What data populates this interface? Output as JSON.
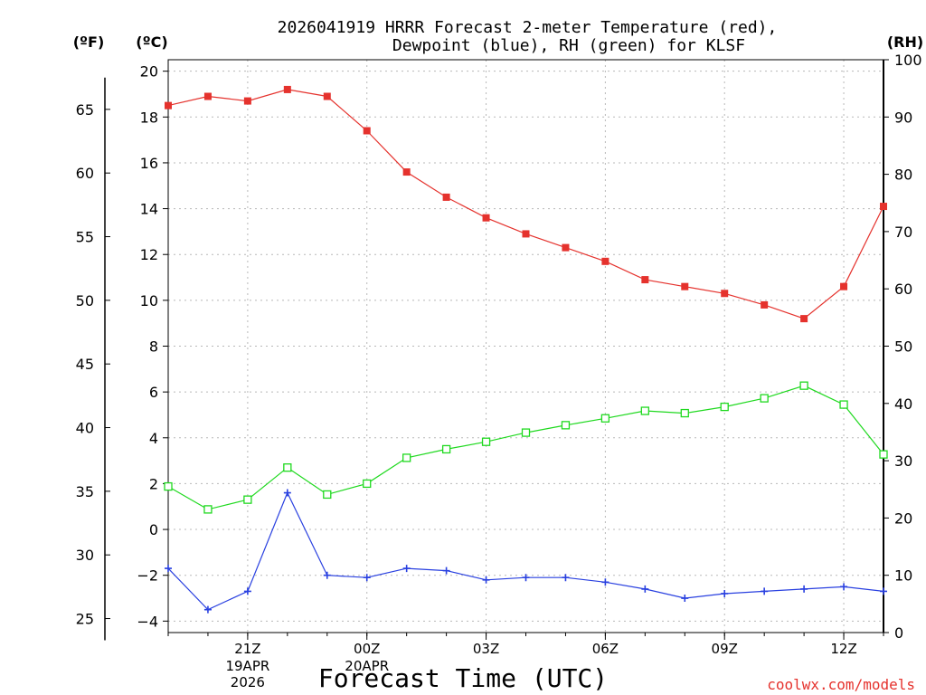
{
  "chart_data": {
    "type": "line",
    "title_line1": "2026041919 HRRR Forecast 2-meter Temperature (red),",
    "title_line2": "Dewpoint (blue), RH (green) for KLSF",
    "xlabel": "Forecast Time (UTC)",
    "credit": "coolwx.com/models",
    "units": {
      "left_f": "(ºF)",
      "left_c": "(ºC)",
      "right_rh": "(RH)"
    },
    "colors": {
      "temperature": "#e5322d",
      "dewpoint": "#2940e0",
      "rh": "#1fd91f"
    },
    "x_hours": [
      0,
      1,
      2,
      3,
      4,
      5,
      6,
      7,
      8,
      9,
      10,
      11,
      12,
      13,
      14,
      15,
      16,
      17,
      18
    ],
    "x_ticks": [
      {
        "hour": 2,
        "label": "21Z",
        "sub1": "19APR",
        "sub2": "2026"
      },
      {
        "hour": 5,
        "label": "00Z",
        "sub1": "20APR",
        "sub2": ""
      },
      {
        "hour": 8,
        "label": "03Z",
        "sub1": "",
        "sub2": ""
      },
      {
        "hour": 11,
        "label": "06Z",
        "sub1": "",
        "sub2": ""
      },
      {
        "hour": 14,
        "label": "09Z",
        "sub1": "",
        "sub2": ""
      },
      {
        "hour": 17,
        "label": "12Z",
        "sub1": "",
        "sub2": ""
      }
    ],
    "y_celsius_ticks": [
      20,
      18,
      16,
      14,
      12,
      10,
      8,
      6,
      4,
      2,
      0,
      -2,
      -4
    ],
    "y_fahrenheit_ticks": [
      65,
      60,
      55,
      50,
      45,
      40,
      35,
      30,
      25
    ],
    "y_rh_ticks": [
      100,
      90,
      80,
      70,
      60,
      50,
      40,
      30,
      20,
      10,
      0
    ],
    "ylim_celsius": [
      -4.5,
      20.5
    ],
    "ylim_rh": [
      0,
      100
    ],
    "series": [
      {
        "name": "Temperature",
        "unit": "C",
        "values": [
          18.5,
          18.9,
          18.7,
          19.2,
          18.9,
          17.4,
          15.6,
          14.5,
          13.6,
          12.9,
          12.3,
          11.7,
          10.9,
          10.6,
          10.3,
          9.8,
          9.2,
          10.6,
          14.1
        ]
      },
      {
        "name": "Dewpoint",
        "unit": "C",
        "values": [
          -1.7,
          -3.5,
          -2.7,
          1.6,
          -2.0,
          -2.1,
          -1.7,
          -1.8,
          -2.2,
          -2.1,
          -2.1,
          -2.3,
          -2.6,
          -3.0,
          -2.8,
          -2.7,
          -2.6,
          -2.5,
          -2.7
        ]
      },
      {
        "name": "RH",
        "unit": "%",
        "values": [
          25.5,
          21.5,
          23.2,
          28.8,
          24.1,
          26.0,
          30.5,
          32.0,
          33.3,
          34.9,
          36.2,
          37.4,
          38.7,
          38.3,
          39.4,
          40.9,
          43.1,
          39.8,
          31.1
        ]
      }
    ]
  }
}
